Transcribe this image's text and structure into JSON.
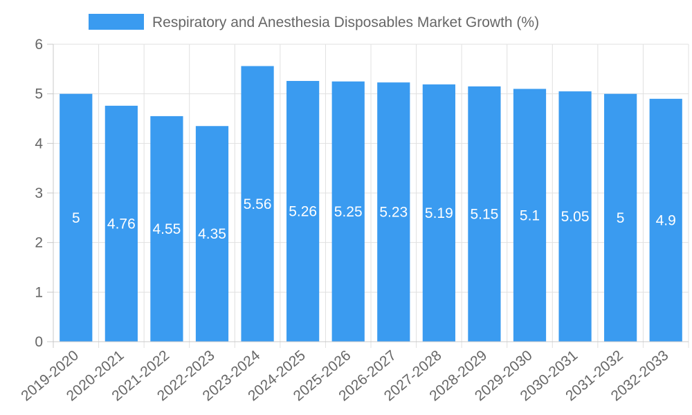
{
  "chart_data": {
    "type": "bar",
    "title": "",
    "xlabel": "",
    "ylabel": "",
    "ylim": [
      0,
      6
    ],
    "yticks": [
      0,
      1,
      2,
      3,
      4,
      5,
      6
    ],
    "grid": true,
    "legend_position": "top-center",
    "categories": [
      "2019-2020",
      "2020-2021",
      "2021-2022",
      "2022-2023",
      "2023-2024",
      "2024-2025",
      "2025-2026",
      "2026-2027",
      "2027-2028",
      "2028-2029",
      "2029-2030",
      "2030-2031",
      "2031-2032",
      "2032-2033"
    ],
    "series": [
      {
        "name": "Respiratory and Anesthesia Disposables Market Growth (%)",
        "color": "#3a9bf0",
        "values": [
          5,
          4.76,
          4.55,
          4.35,
          5.56,
          5.26,
          5.25,
          5.23,
          5.19,
          5.15,
          5.1,
          5.05,
          5,
          4.9
        ]
      }
    ]
  }
}
